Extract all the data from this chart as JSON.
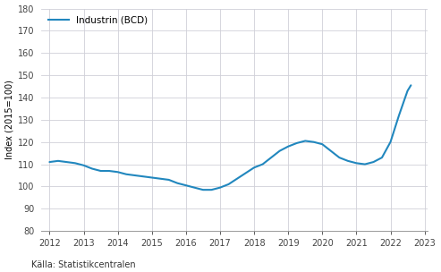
{
  "x": [
    2012.0,
    2012.25,
    2012.5,
    2012.75,
    2013.0,
    2013.25,
    2013.5,
    2013.75,
    2014.0,
    2014.25,
    2014.5,
    2014.75,
    2015.0,
    2015.25,
    2015.5,
    2015.75,
    2016.0,
    2016.25,
    2016.5,
    2016.75,
    2017.0,
    2017.25,
    2017.5,
    2017.75,
    2018.0,
    2018.25,
    2018.5,
    2018.75,
    2019.0,
    2019.25,
    2019.5,
    2019.75,
    2020.0,
    2020.25,
    2020.5,
    2020.75,
    2021.0,
    2021.25,
    2021.5,
    2021.75,
    2022.0,
    2022.25,
    2022.5,
    2022.6
  ],
  "y": [
    111.0,
    111.5,
    111.0,
    110.5,
    109.5,
    108.0,
    107.0,
    107.0,
    106.5,
    105.5,
    105.0,
    104.5,
    104.0,
    103.5,
    103.0,
    101.5,
    100.5,
    99.5,
    98.5,
    98.5,
    99.5,
    101.0,
    103.5,
    106.0,
    108.5,
    110.0,
    113.0,
    116.0,
    118.0,
    119.5,
    120.5,
    120.0,
    119.0,
    116.0,
    113.0,
    111.5,
    110.5,
    110.0,
    111.0,
    113.0,
    120.0,
    132.0,
    143.0,
    145.5
  ],
  "line_color": "#2187BE",
  "ylabel": "Index (2015=100)",
  "legend_label": "Industrin (BCD)",
  "source": "Källa: Statistikcentralen",
  "ylim": [
    80,
    180
  ],
  "yticks": [
    80,
    90,
    100,
    110,
    120,
    130,
    140,
    150,
    160,
    170,
    180
  ],
  "xlim": [
    2011.75,
    2023.1
  ],
  "xticks": [
    2012,
    2013,
    2014,
    2015,
    2016,
    2017,
    2018,
    2019,
    2020,
    2021,
    2022,
    2023
  ],
  "plot_bg_color": "#ffffff",
  "fig_bg_color": "#ffffff",
  "grid_color": "#d0d0d8",
  "line_width": 1.5,
  "font_size_ticks": 7,
  "font_size_label": 7,
  "font_size_legend": 7.5,
  "font_size_source": 7
}
